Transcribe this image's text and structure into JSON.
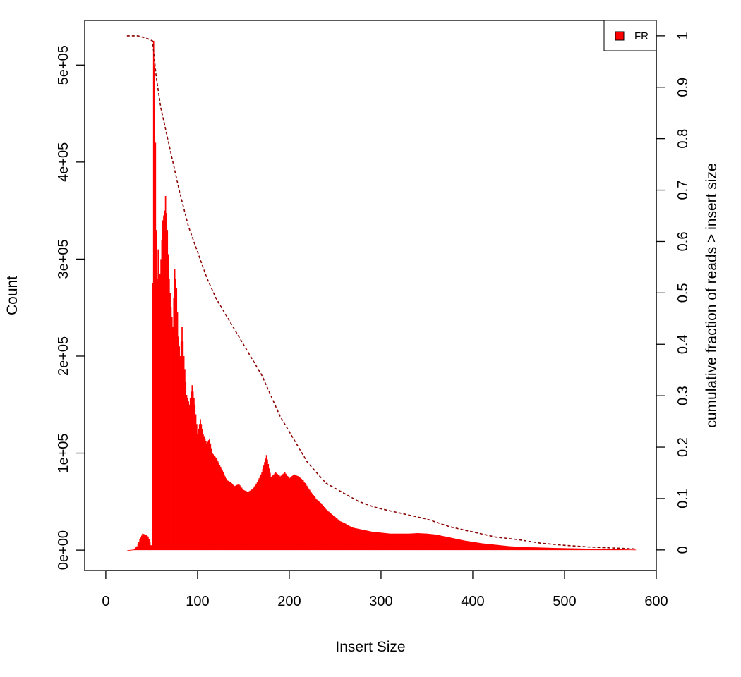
{
  "chart_data": {
    "type": "bar",
    "title": "",
    "xlabel": "Insert Size",
    "ylabel": "Count",
    "y2label": "cumulative fraction of reads > insert size",
    "xlim": [
      -23,
      600
    ],
    "ylim": [
      -21000,
      546000
    ],
    "y2lim": [
      -0.04,
      1.03
    ],
    "x_ticks": [
      0,
      100,
      200,
      300,
      400,
      500,
      600
    ],
    "x_tick_labels": [
      "0",
      "100",
      "200",
      "300",
      "400",
      "500",
      "600"
    ],
    "y_ticks": [
      0,
      100000,
      200000,
      300000,
      400000,
      500000
    ],
    "y_tick_labels": [
      "0e+00",
      "1e+05",
      "2e+05",
      "3e+05",
      "4e+05",
      "5e+05"
    ],
    "y2_ticks": [
      0,
      0.1,
      0.2,
      0.3,
      0.4,
      0.5,
      0.6,
      0.7,
      0.8,
      0.9,
      1
    ],
    "y2_tick_labels": [
      "0",
      "0.1",
      "0.2",
      "0.3",
      "0.4",
      "0.5",
      "0.6",
      "0.7",
      "0.8",
      "0.9",
      "1"
    ],
    "grid": false,
    "legend": {
      "position": "top-right",
      "entries": [
        {
          "label": "FR",
          "color": "#ff0000"
        }
      ]
    },
    "bar_color": "#ff0000",
    "cumulative_color": "#8b0000",
    "series": [
      {
        "name": "FR",
        "kind": "histogram",
        "points": [
          [
            24,
            0
          ],
          [
            30,
            500
          ],
          [
            34,
            4000
          ],
          [
            37,
            11000
          ],
          [
            40,
            17000
          ],
          [
            43,
            16000
          ],
          [
            46,
            14000
          ],
          [
            49,
            5000
          ],
          [
            50,
            5000
          ],
          [
            51,
            275000
          ],
          [
            52,
            525000
          ],
          [
            53,
            500000
          ],
          [
            54,
            420000
          ],
          [
            55,
            330000
          ],
          [
            56,
            280000
          ],
          [
            57,
            310000
          ],
          [
            58,
            270000
          ],
          [
            60,
            300000
          ],
          [
            62,
            340000
          ],
          [
            64,
            350000
          ],
          [
            65,
            365000
          ],
          [
            67,
            330000
          ],
          [
            69,
            280000
          ],
          [
            71,
            250000
          ],
          [
            73,
            230000
          ],
          [
            75,
            290000
          ],
          [
            77,
            270000
          ],
          [
            79,
            220000
          ],
          [
            81,
            200000
          ],
          [
            83,
            230000
          ],
          [
            85,
            200000
          ],
          [
            88,
            160000
          ],
          [
            91,
            150000
          ],
          [
            94,
            170000
          ],
          [
            97,
            150000
          ],
          [
            100,
            120000
          ],
          [
            103,
            135000
          ],
          [
            106,
            120000
          ],
          [
            110,
            110000
          ],
          [
            113,
            115000
          ],
          [
            116,
            100000
          ],
          [
            120,
            95000
          ],
          [
            124,
            88000
          ],
          [
            128,
            80000
          ],
          [
            132,
            72000
          ],
          [
            136,
            70000
          ],
          [
            140,
            66000
          ],
          [
            145,
            68000
          ],
          [
            150,
            62000
          ],
          [
            155,
            60000
          ],
          [
            160,
            63000
          ],
          [
            165,
            70000
          ],
          [
            170,
            80000
          ],
          [
            175,
            98000
          ],
          [
            180,
            75000
          ],
          [
            185,
            80000
          ],
          [
            190,
            76000
          ],
          [
            195,
            80000
          ],
          [
            200,
            74000
          ],
          [
            205,
            78000
          ],
          [
            210,
            76000
          ],
          [
            215,
            72000
          ],
          [
            220,
            65000
          ],
          [
            225,
            58000
          ],
          [
            230,
            52000
          ],
          [
            235,
            48000
          ],
          [
            240,
            42000
          ],
          [
            245,
            38000
          ],
          [
            250,
            34000
          ],
          [
            255,
            30000
          ],
          [
            260,
            28000
          ],
          [
            265,
            25000
          ],
          [
            270,
            23000
          ],
          [
            280,
            21000
          ],
          [
            290,
            19000
          ],
          [
            300,
            18000
          ],
          [
            310,
            17000
          ],
          [
            320,
            17000
          ],
          [
            330,
            17000
          ],
          [
            340,
            17500
          ],
          [
            350,
            17000
          ],
          [
            360,
            16000
          ],
          [
            370,
            14000
          ],
          [
            380,
            12000
          ],
          [
            390,
            10000
          ],
          [
            400,
            8500
          ],
          [
            410,
            7000
          ],
          [
            420,
            6000
          ],
          [
            430,
            5000
          ],
          [
            440,
            4000
          ],
          [
            450,
            3500
          ],
          [
            460,
            3000
          ],
          [
            470,
            2800
          ],
          [
            480,
            2500
          ],
          [
            490,
            2200
          ],
          [
            500,
            2000
          ],
          [
            510,
            1800
          ],
          [
            520,
            1600
          ],
          [
            530,
            1400
          ],
          [
            540,
            1200
          ],
          [
            550,
            1000
          ],
          [
            560,
            800
          ],
          [
            570,
            600
          ],
          [
            577,
            500
          ]
        ]
      },
      {
        "name": "",
        "kind": "cumulative",
        "axis": "right",
        "points": [
          [
            23,
            1.0
          ],
          [
            35,
            1.0
          ],
          [
            45,
            0.995
          ],
          [
            51,
            0.99
          ],
          [
            55,
            0.92
          ],
          [
            60,
            0.86
          ],
          [
            65,
            0.82
          ],
          [
            70,
            0.78
          ],
          [
            75,
            0.74
          ],
          [
            80,
            0.7
          ],
          [
            90,
            0.63
          ],
          [
            100,
            0.58
          ],
          [
            110,
            0.53
          ],
          [
            120,
            0.49
          ],
          [
            130,
            0.46
          ],
          [
            140,
            0.43
          ],
          [
            150,
            0.4
          ],
          [
            160,
            0.37
          ],
          [
            170,
            0.34
          ],
          [
            180,
            0.3
          ],
          [
            190,
            0.26
          ],
          [
            200,
            0.23
          ],
          [
            210,
            0.2
          ],
          [
            220,
            0.17
          ],
          [
            230,
            0.15
          ],
          [
            240,
            0.13
          ],
          [
            250,
            0.12
          ],
          [
            260,
            0.11
          ],
          [
            275,
            0.095
          ],
          [
            290,
            0.085
          ],
          [
            300,
            0.08
          ],
          [
            325,
            0.07
          ],
          [
            350,
            0.06
          ],
          [
            375,
            0.045
          ],
          [
            400,
            0.035
          ],
          [
            425,
            0.025
          ],
          [
            450,
            0.02
          ],
          [
            475,
            0.013
          ],
          [
            500,
            0.009
          ],
          [
            525,
            0.006
          ],
          [
            550,
            0.004
          ],
          [
            577,
            0.002
          ]
        ]
      }
    ]
  }
}
